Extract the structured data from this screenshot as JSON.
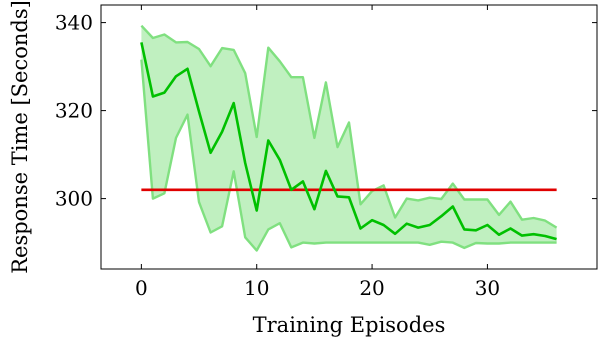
{
  "chart_data": {
    "type": "line",
    "title": "",
    "xlabel": "Training Episodes",
    "ylabel": "Response Time [Seconds]",
    "xlim": [
      -3.5,
      39.5
    ],
    "ylim": [
      284,
      344
    ],
    "xticks": [
      0,
      10,
      20,
      30
    ],
    "yticks": [
      300,
      320,
      340
    ],
    "grid": false,
    "legend": "none",
    "colors": {
      "mean": "#00c000",
      "band_fill": "#c0f0c0",
      "band_edge": "#80e080",
      "baseline": "#e00000"
    },
    "x": [
      0,
      1,
      2,
      3,
      4,
      5,
      6,
      7,
      8,
      9,
      10,
      11,
      12,
      13,
      14,
      15,
      16,
      17,
      18,
      19,
      20,
      21,
      22,
      23,
      24,
      25,
      26,
      27,
      28,
      29,
      30,
      31,
      32,
      33,
      34,
      35,
      36
    ],
    "series": [
      {
        "role": "mean",
        "values": [
          335.5,
          323.2,
          324.1,
          327.8,
          329.5,
          319.8,
          310.4,
          315.2,
          321.7,
          308.1,
          297.3,
          313.2,
          308.8,
          302.0,
          303.9,
          297.6,
          306.3,
          300.5,
          300.3,
          293.2,
          295.1,
          294.0,
          292.0,
          294.3,
          293.4,
          294.0,
          296.0,
          298.2,
          293.0,
          292.8,
          294.0,
          291.8,
          293.2,
          291.6,
          291.9,
          291.5,
          290.8
        ]
      },
      {
        "role": "upper",
        "values": [
          339.3,
          336.5,
          337.3,
          335.5,
          335.6,
          334.0,
          330.1,
          334.2,
          333.8,
          328.5,
          314.0,
          334.3,
          331.2,
          327.6,
          327.6,
          313.8,
          326.4,
          311.7,
          317.3,
          298.7,
          301.7,
          303.0,
          295.7,
          300.0,
          299.6,
          300.2,
          299.9,
          303.4,
          299.8,
          299.8,
          299.8,
          296.3,
          299.3,
          295.2,
          295.6,
          295.0,
          293.4
        ]
      },
      {
        "role": "lower",
        "values": [
          331.6,
          300.0,
          301.2,
          313.8,
          319.1,
          299.2,
          292.3,
          293.7,
          306.2,
          291.2,
          288.2,
          293.0,
          294.4,
          288.9,
          290.0,
          289.8,
          290.0,
          290.0,
          290.0,
          290.0,
          290.0,
          290.0,
          290.0,
          290.0,
          290.0,
          289.5,
          290.2,
          290.0,
          288.8,
          289.9,
          289.8,
          289.8,
          290.0,
          290.0,
          290.0,
          290.0,
          290.0
        ]
      },
      {
        "role": "baseline",
        "x_range": [
          0,
          36
        ],
        "value": 302.0
      }
    ]
  }
}
